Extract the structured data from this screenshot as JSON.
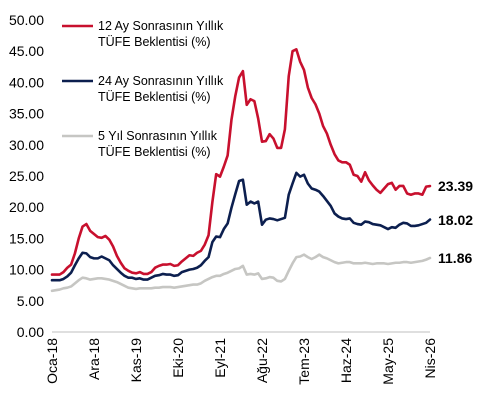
{
  "chart_data": {
    "type": "line",
    "title": "",
    "xlabel": "",
    "ylabel": "",
    "ylim": [
      0,
      50
    ],
    "ytick_labels": [
      "0.00",
      "5.00",
      "10.00",
      "15.00",
      "20.00",
      "25.00",
      "30.00",
      "35.00",
      "40.00",
      "45.00",
      "50.00"
    ],
    "ytick_values": [
      0,
      5,
      10,
      15,
      20,
      25,
      30,
      35,
      40,
      45,
      50
    ],
    "x_tick_labels": [
      "Oca-18",
      "Ara-18",
      "Kas-19",
      "Eki-20",
      "Eyl-21",
      "Ağu-22",
      "Tem-23",
      "Haz-24",
      "May-25",
      "Nis-26"
    ],
    "x_tick_index": [
      0,
      11,
      22,
      33,
      44,
      55,
      66,
      77,
      88,
      99
    ],
    "n_points": 100,
    "grid": false,
    "legend_position": "top-left",
    "series": [
      {
        "name_line1": "12 Ay Sonrasının Yıllık",
        "name_line2": "TÜFE Beklentisi (%)",
        "color": "#c8102e",
        "end_label": "23.39",
        "values": [
          9.2,
          9.2,
          9.2,
          9.6,
          10.3,
          10.8,
          12.6,
          15.0,
          16.9,
          17.3,
          16.2,
          15.7,
          15.2,
          15.1,
          15.4,
          14.8,
          13.7,
          12.2,
          11.1,
          10.2,
          9.8,
          9.5,
          9.4,
          9.6,
          9.3,
          9.3,
          9.6,
          10.3,
          10.6,
          10.8,
          10.8,
          10.9,
          10.6,
          10.7,
          11.3,
          11.8,
          12.3,
          12.2,
          12.7,
          13.0,
          14.0,
          15.5,
          20.8,
          25.3,
          24.9,
          26.5,
          28.3,
          34.0,
          37.8,
          40.8,
          41.8,
          36.4,
          37.3,
          37.0,
          34.2,
          30.5,
          30.6,
          31.7,
          31.0,
          29.5,
          29.5,
          32.5,
          41.0,
          45.0,
          45.3,
          43.3,
          42.0,
          39.2,
          37.5,
          36.5,
          35.0,
          33.0,
          31.8,
          30.0,
          28.5,
          27.5,
          27.2,
          27.2,
          26.8,
          25.2,
          25.0,
          24.1,
          25.6,
          24.3,
          23.5,
          22.8,
          22.3,
          23.0,
          23.7,
          23.9,
          22.8,
          23.4,
          23.4,
          22.2,
          22.0,
          22.2,
          22.2,
          22.0,
          23.3,
          23.39
        ]
      },
      {
        "name_line1": "24 Ay Sonrasının Yıllık",
        "name_line2": "TÜFE Beklentisi (%)",
        "color": "#0c1f4f",
        "end_label": "18.02",
        "values": [
          8.3,
          8.3,
          8.3,
          8.5,
          8.9,
          9.5,
          10.7,
          11.8,
          12.7,
          12.6,
          12.0,
          11.8,
          11.8,
          12.1,
          11.8,
          11.5,
          10.7,
          10.1,
          9.5,
          9.0,
          8.7,
          8.7,
          8.5,
          8.6,
          8.4,
          8.4,
          8.7,
          9.0,
          9.1,
          9.3,
          9.2,
          9.2,
          9.0,
          9.1,
          9.6,
          9.8,
          10.0,
          10.1,
          10.3,
          10.7,
          11.4,
          12.0,
          14.4,
          15.3,
          15.2,
          16.5,
          17.4,
          19.9,
          22.1,
          24.2,
          24.4,
          20.4,
          20.9,
          20.6,
          20.9,
          17.2,
          18.0,
          18.2,
          18.1,
          17.9,
          18.1,
          18.3,
          22.0,
          23.8,
          25.5,
          24.9,
          25.2,
          23.8,
          23.0,
          22.8,
          22.5,
          21.8,
          21.0,
          20.2,
          19.0,
          18.5,
          18.2,
          18.1,
          18.2,
          17.5,
          17.3,
          17.2,
          17.7,
          17.6,
          17.3,
          17.2,
          17.1,
          16.8,
          16.5,
          16.8,
          16.7,
          17.2,
          17.5,
          17.4,
          17.0,
          17.0,
          17.1,
          17.3,
          17.5,
          18.02
        ]
      },
      {
        "name_line1": "5 Yıl Sonrasının Yıllık",
        "name_line2": "TÜFE Beklentisi (%)",
        "color": "#c6c6c3",
        "end_label": "11.86",
        "values": [
          6.6,
          6.7,
          6.8,
          7.0,
          7.1,
          7.3,
          7.8,
          8.3,
          8.7,
          8.6,
          8.4,
          8.5,
          8.6,
          8.6,
          8.5,
          8.4,
          8.2,
          8.0,
          7.7,
          7.4,
          7.1,
          7.0,
          6.9,
          7.0,
          7.0,
          7.0,
          7.0,
          7.1,
          7.1,
          7.2,
          7.2,
          7.2,
          7.1,
          7.2,
          7.3,
          7.4,
          7.5,
          7.6,
          7.6,
          7.8,
          8.2,
          8.5,
          8.8,
          9.0,
          9.0,
          9.3,
          9.5,
          9.8,
          10.1,
          10.2,
          10.6,
          9.2,
          9.3,
          9.2,
          9.4,
          8.5,
          8.6,
          8.8,
          8.7,
          8.2,
          8.1,
          8.5,
          9.8,
          11.0,
          12.0,
          12.1,
          12.4,
          12.0,
          11.7,
          12.0,
          12.4,
          12.0,
          11.8,
          11.5,
          11.2,
          11.0,
          11.1,
          11.2,
          11.2,
          11.0,
          11.0,
          11.0,
          11.1,
          11.0,
          10.9,
          11.0,
          11.0,
          11.0,
          10.9,
          11.0,
          11.1,
          11.1,
          11.2,
          11.2,
          11.1,
          11.2,
          11.3,
          11.4,
          11.6,
          11.86
        ]
      }
    ]
  }
}
